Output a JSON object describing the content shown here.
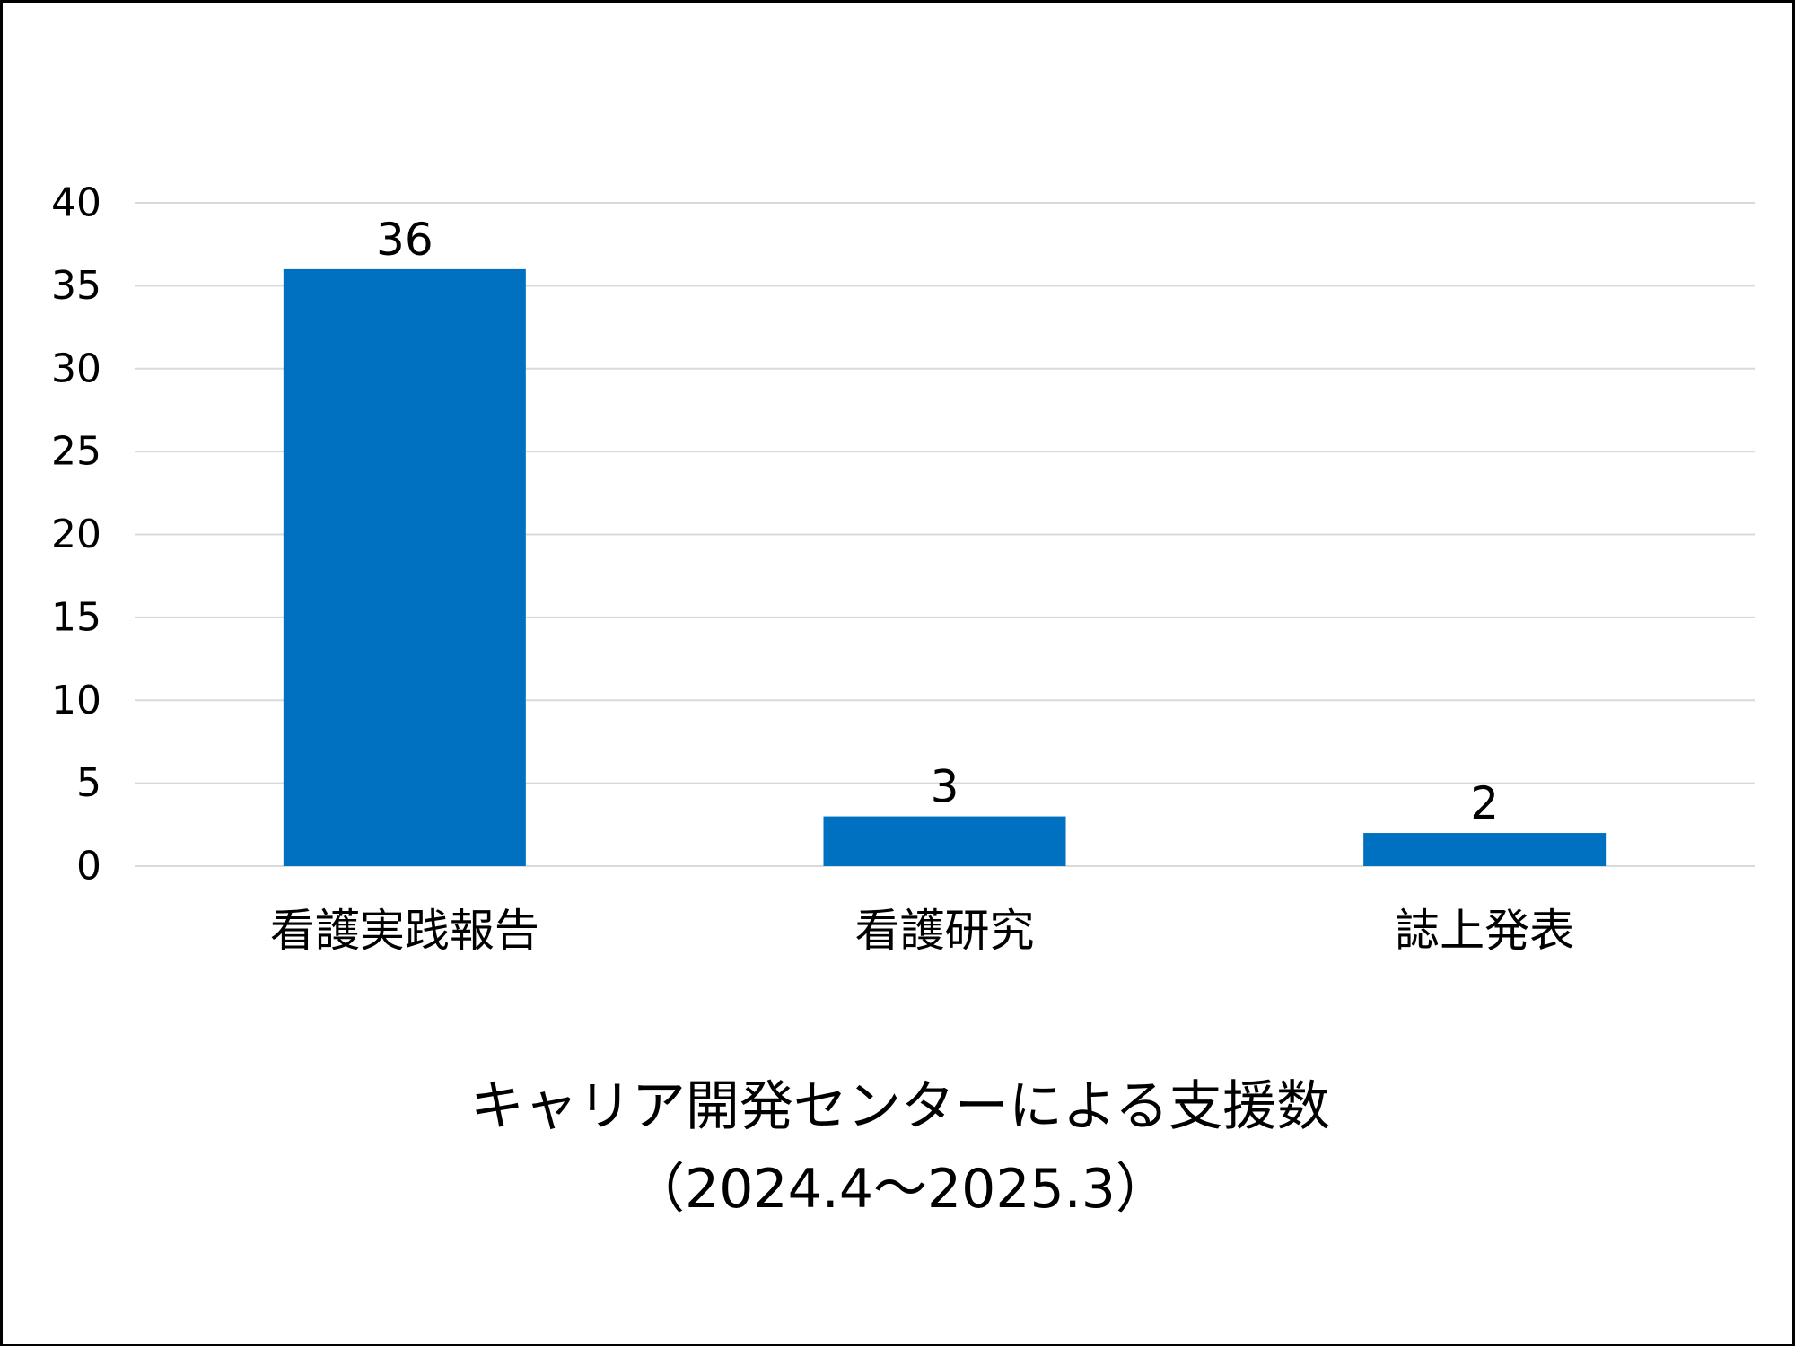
{
  "chart_data": {
    "type": "bar",
    "title": "キャリア開発センターによる支援数",
    "subtitle": "（2024.4～2025.3）",
    "categories": [
      "看護実践報告",
      "看護研究",
      "誌上発表"
    ],
    "values": [
      36,
      3,
      2
    ],
    "data_labels": [
      "36",
      "3",
      "2"
    ],
    "y_ticks": [
      "0",
      "5",
      "10",
      "15",
      "20",
      "25",
      "30",
      "35",
      "40"
    ],
    "xlabel": "",
    "ylabel": "",
    "ylim": [
      0,
      40
    ],
    "grid": true,
    "legend": "none",
    "colors": {
      "bar": "#0070C0",
      "grid": "#D9D9D9",
      "text": "#000000",
      "border": "#000000"
    }
  }
}
